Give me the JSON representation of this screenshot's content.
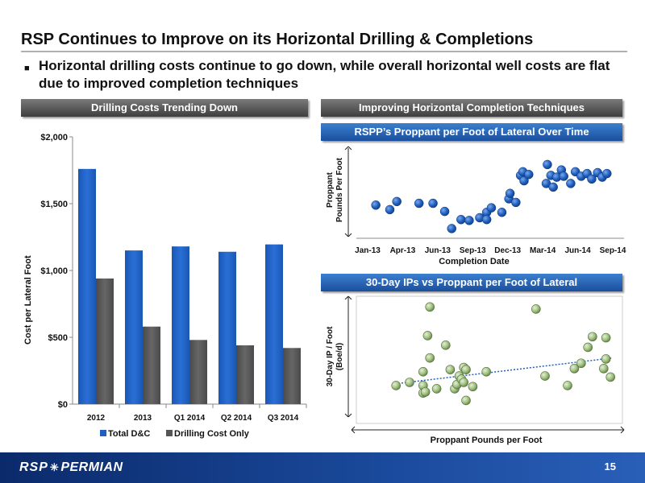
{
  "slide": {
    "title": "RSP Continues to Improve on its Horizontal Drilling & Completions",
    "bullet": "Horizontal drilling costs continue to go down, while overall horizontal well costs are flat due to improved completion techniques",
    "page_number": "15",
    "logo_text_a": "RSP",
    "logo_text_b": "PERMIAN"
  },
  "headers": {
    "left": "Drilling Costs Trending Down",
    "right": "Improving Horizontal Completion Techniques",
    "chart2": "RSPP’s Proppant per Foot of Lateral Over Time",
    "chart3": "30-Day IPs vs Proppant per Foot of Lateral"
  },
  "colors": {
    "total": "#1f5fbf",
    "drilling": "#555555",
    "dot_blue": "#1f5fbf",
    "dot_green": "#9fbf7f",
    "trend": "#2060c0"
  },
  "chart_data": [
    {
      "type": "bar",
      "title": "Drilling Costs Trending Down",
      "categories": [
        "2012",
        "2013",
        "Q1 2014",
        "Q2 2014",
        "Q3 2014"
      ],
      "series": [
        {
          "name": "Total D&C",
          "values": [
            1760,
            1150,
            1180,
            1140,
            1195
          ]
        },
        {
          "name": "Drilling Cost Only",
          "values": [
            940,
            580,
            480,
            440,
            420
          ]
        }
      ],
      "ylabel": "Cost per Lateral Foot",
      "ylim": [
        0,
        2000
      ],
      "yticks": [
        "$0",
        "$500",
        "$1,000",
        "$1,500",
        "$2,000"
      ],
      "legend": "bottom"
    },
    {
      "type": "scatter",
      "title": "RSPP’s Proppant per Foot of Lateral Over Time",
      "xlabel": "Completion Date",
      "ylabel": "Proppant Pounds Per Foot",
      "xticks": [
        "Jan-13",
        "Apr-13",
        "Jun-13",
        "Sep-13",
        "Dec-13",
        "Mar-14",
        "Jun-14",
        "Sep-14"
      ],
      "xlim": [
        0,
        21
      ],
      "ylim": [
        0,
        1
      ],
      "points": [
        [
          0.7,
          0.35
        ],
        [
          1.9,
          0.3
        ],
        [
          2.5,
          0.39
        ],
        [
          4.4,
          0.37
        ],
        [
          5.6,
          0.37
        ],
        [
          6.6,
          0.28
        ],
        [
          7.2,
          0.09
        ],
        [
          8.0,
          0.19
        ],
        [
          8.7,
          0.18
        ],
        [
          9.6,
          0.21
        ],
        [
          10.2,
          0.27
        ],
        [
          10.6,
          0.32
        ],
        [
          10.2,
          0.19
        ],
        [
          11.5,
          0.27
        ],
        [
          12.1,
          0.42
        ],
        [
          12.2,
          0.48
        ],
        [
          12.7,
          0.38
        ],
        [
          13.1,
          0.68
        ],
        [
          13.4,
          0.62
        ],
        [
          13.3,
          0.72
        ],
        [
          13.8,
          0.69
        ],
        [
          15.4,
          0.8
        ],
        [
          15.3,
          0.59
        ],
        [
          15.9,
          0.55
        ],
        [
          15.7,
          0.68
        ],
        [
          16.2,
          0.66
        ],
        [
          16.6,
          0.74
        ],
        [
          16.8,
          0.67
        ],
        [
          17.4,
          0.59
        ],
        [
          17.8,
          0.72
        ],
        [
          18.3,
          0.67
        ],
        [
          18.8,
          0.7
        ],
        [
          19.2,
          0.64
        ],
        [
          19.7,
          0.71
        ],
        [
          20.1,
          0.66
        ],
        [
          20.5,
          0.7
        ]
      ]
    },
    {
      "type": "scatter",
      "title": "30-Day IPs vs Proppant per Foot of Lateral",
      "xlabel": "Proppant Pounds per Foot",
      "ylabel": "30-Day IP / Foot (Boe/d)",
      "xlim": [
        0,
        100
      ],
      "ylim": [
        0,
        100
      ],
      "points": [
        [
          4,
          22
        ],
        [
          10,
          25
        ],
        [
          16,
          22
        ],
        [
          16,
          35
        ],
        [
          16,
          15
        ],
        [
          17,
          16
        ],
        [
          18,
          69
        ],
        [
          19,
          48
        ],
        [
          19,
          96
        ],
        [
          22,
          19
        ],
        [
          26,
          60
        ],
        [
          28,
          37
        ],
        [
          30,
          19
        ],
        [
          31,
          23
        ],
        [
          32,
          31
        ],
        [
          33,
          28
        ],
        [
          34,
          39
        ],
        [
          35,
          8
        ],
        [
          34,
          25
        ],
        [
          35,
          37
        ],
        [
          38,
          21
        ],
        [
          44,
          35
        ],
        [
          66,
          94
        ],
        [
          70,
          31
        ],
        [
          80,
          22
        ],
        [
          83,
          38
        ],
        [
          86,
          43
        ],
        [
          89,
          58
        ],
        [
          91,
          68
        ],
        [
          96,
          38
        ],
        [
          97,
          47
        ],
        [
          97,
          67
        ],
        [
          99,
          30
        ]
      ],
      "trendline": [
        [
          5,
          24
        ],
        [
          100,
          48
        ]
      ]
    }
  ]
}
